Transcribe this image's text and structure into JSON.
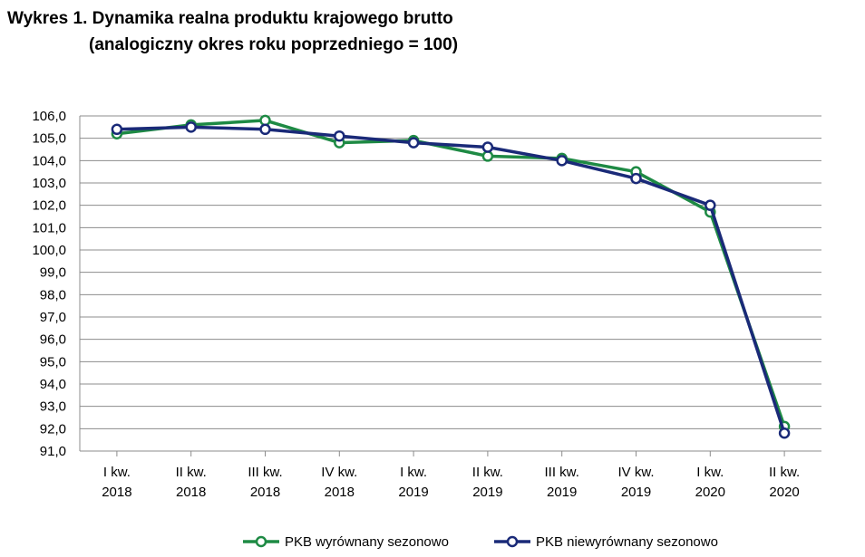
{
  "title": {
    "line1": "Wykres 1. Dynamika realna produktu krajowego brutto",
    "line2": "(analogiczny okres roku poprzedniego = 100)"
  },
  "chart_data": {
    "type": "line",
    "categories": [
      [
        "I kw.",
        "2018"
      ],
      [
        "II kw.",
        "2018"
      ],
      [
        "III kw.",
        "2018"
      ],
      [
        "IV kw.",
        "2018"
      ],
      [
        "I kw.",
        "2019"
      ],
      [
        "II kw.",
        "2019"
      ],
      [
        "III kw.",
        "2019"
      ],
      [
        "IV kw.",
        "2019"
      ],
      [
        "I kw.",
        "2020"
      ],
      [
        "II kw.",
        "2020"
      ]
    ],
    "ylim": [
      91.0,
      106.0
    ],
    "yticks": [
      "91,0",
      "92,0",
      "93,0",
      "94,0",
      "95,0",
      "96,0",
      "97,0",
      "98,0",
      "99,0",
      "100,0",
      "101,0",
      "102,0",
      "103,0",
      "104,0",
      "105,0",
      "106,0"
    ],
    "grid": true,
    "legend_position": "bottom",
    "series": [
      {
        "name": "PKB wyrównany sezonowo",
        "color": "#1e8a44",
        "values": [
          105.2,
          105.6,
          105.8,
          104.8,
          104.9,
          104.2,
          104.1,
          103.5,
          101.7,
          92.1
        ]
      },
      {
        "name": "PKB niewyrównany sezonowo",
        "color": "#1a2a78",
        "values": [
          105.4,
          105.5,
          105.4,
          105.1,
          104.8,
          104.6,
          104.0,
          103.2,
          102.0,
          91.8
        ]
      }
    ]
  }
}
